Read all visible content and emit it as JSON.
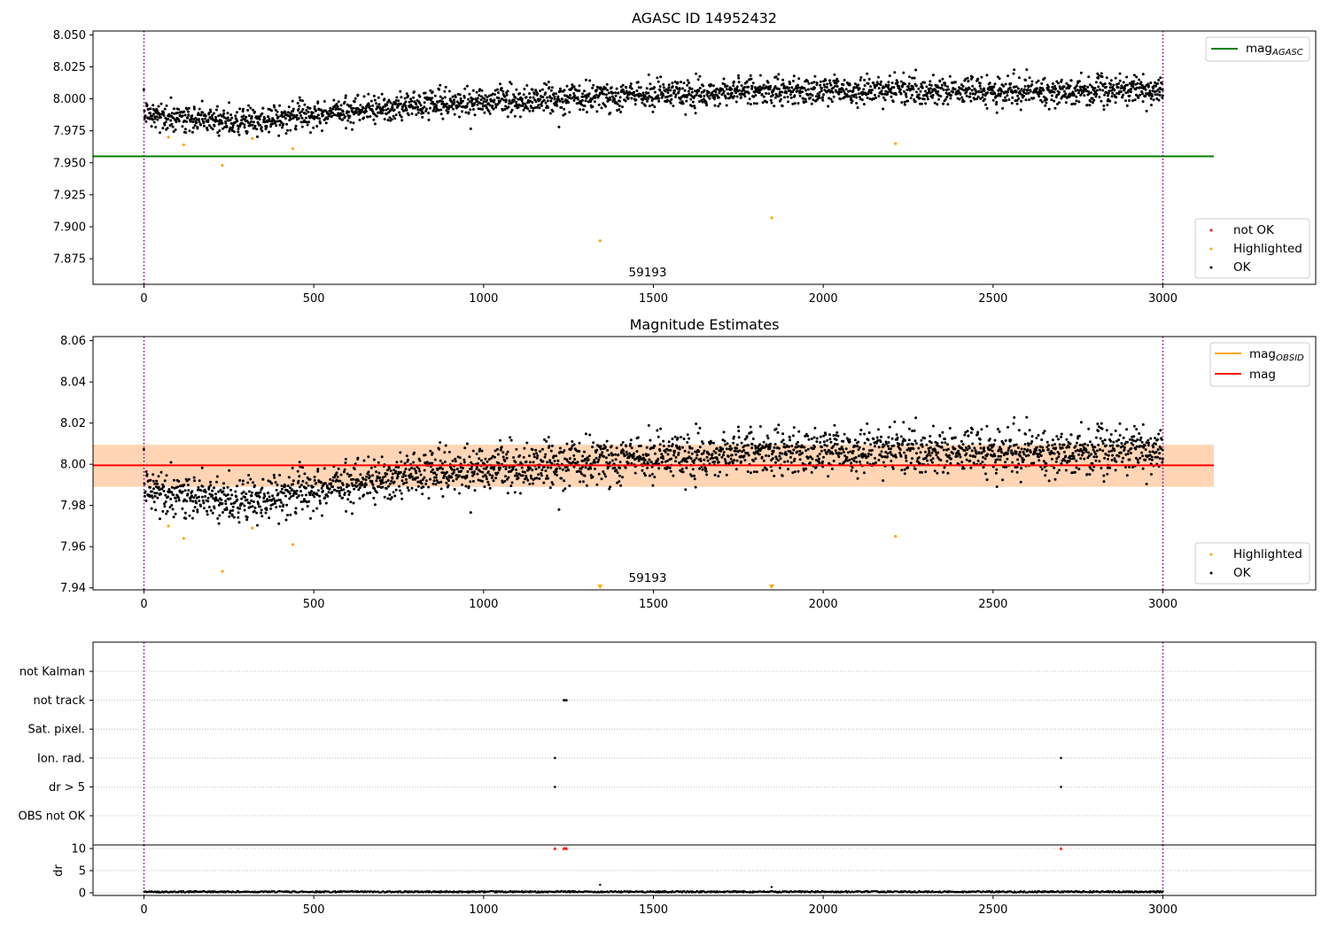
{
  "chart_data": [
    {
      "type": "scatter",
      "title": "AGASC ID 14952432",
      "annotation": "59193",
      "xlim": [
        -150,
        3450
      ],
      "ylim": [
        7.855,
        8.053
      ],
      "x_ticks": [
        0,
        500,
        1000,
        1500,
        2000,
        2500,
        3000
      ],
      "y_ticks": [
        7.875,
        7.9,
        7.925,
        7.95,
        7.975,
        8.0,
        8.025,
        8.05
      ],
      "y_tick_labels": [
        "7.875",
        "7.900",
        "7.925",
        "7.950",
        "7.975",
        "8.000",
        "8.025",
        "8.050"
      ],
      "vlines": [
        0,
        3000
      ],
      "hline": {
        "label": "mag",
        "label_sub": "AGASC",
        "y": 7.955,
        "x_range": [
          -150,
          3150
        ],
        "color": "#008000"
      },
      "ok_series": {
        "name": "OK",
        "color": "#000000",
        "trend": [
          [
            0,
            7.987
          ],
          [
            300,
            7.982
          ],
          [
            600,
            7.99
          ],
          [
            900,
            7.997
          ],
          [
            1200,
            8.0
          ],
          [
            1500,
            8.004
          ],
          [
            1800,
            8.006
          ],
          [
            2100,
            8.006
          ],
          [
            2400,
            8.006
          ],
          [
            2700,
            8.006
          ],
          [
            3000,
            8.007
          ]
        ],
        "scatter_sd": 0.0055,
        "count": 2600,
        "x_range": [
          0,
          3000
        ]
      },
      "outliers": [
        {
          "x": 1222,
          "y": 7.978
        }
      ],
      "highlighted": {
        "name": "Highlighted",
        "color": "#ffa500",
        "points": [
          [
            72,
            7.97
          ],
          [
            117,
            7.964
          ],
          [
            231,
            7.948
          ],
          [
            319,
            7.969
          ],
          [
            438,
            7.961
          ],
          [
            1343,
            7.889
          ],
          [
            1848,
            7.907
          ],
          [
            2213,
            7.965
          ]
        ]
      },
      "legend_main": {
        "placement": "upper right",
        "entries": [
          {
            "label": "mag",
            "label_sub": "AGASC",
            "color": "#008000",
            "marker": "line"
          }
        ]
      },
      "legend_points": {
        "placement": "lower right",
        "entries": [
          {
            "label": "not OK",
            "color": "#ff0000",
            "marker": "dot"
          },
          {
            "label": "Highlighted",
            "color": "#ffa500",
            "marker": "dot"
          },
          {
            "label": "OK",
            "color": "#000000",
            "marker": "dot"
          }
        ]
      }
    },
    {
      "type": "scatter",
      "title": "Magnitude Estimates",
      "annotation": "59193",
      "xlim": [
        -150,
        3450
      ],
      "ylim": [
        7.939,
        8.062
      ],
      "x_ticks": [
        0,
        500,
        1000,
        1500,
        2000,
        2500,
        3000
      ],
      "y_ticks": [
        7.94,
        7.96,
        7.98,
        8.0,
        8.02,
        8.04,
        8.06
      ],
      "y_tick_labels": [
        "7.94",
        "7.96",
        "7.98",
        "8.00",
        "8.02",
        "8.04",
        "8.06"
      ],
      "vlines": [
        0,
        3000
      ],
      "bands": [
        {
          "y_range": [
            7.989,
            8.0095
          ],
          "x_range": [
            -150,
            3150
          ],
          "color": "#ffc0cb",
          "opacity": 0.45
        },
        {
          "y_range": [
            7.989,
            8.0095
          ],
          "x_range": [
            -150,
            3150
          ],
          "color": "#ffa500",
          "opacity": 0.22
        }
      ],
      "hline": {
        "label": "mag",
        "y": 7.9995,
        "x_range": [
          -150,
          3150
        ],
        "color": "#ff0000"
      },
      "obsid_line": {
        "label": "mag",
        "label_sub": "OBSID",
        "color": "#ffa500"
      },
      "ok_series": {
        "name": "OK",
        "color": "#000000",
        "trend": [
          [
            0,
            7.987
          ],
          [
            300,
            7.982
          ],
          [
            600,
            7.99
          ],
          [
            900,
            7.997
          ],
          [
            1200,
            8.0
          ],
          [
            1500,
            8.004
          ],
          [
            1800,
            8.006
          ],
          [
            2100,
            8.006
          ],
          [
            2400,
            8.006
          ],
          [
            2700,
            8.006
          ],
          [
            3000,
            8.007
          ]
        ],
        "scatter_sd": 0.0055,
        "count": 2600,
        "x_range": [
          0,
          3000
        ]
      },
      "outliers": [
        {
          "x": 1222,
          "y": 7.978
        }
      ],
      "highlighted": {
        "name": "Highlighted",
        "color": "#ffa500",
        "points": [
          [
            72,
            7.97
          ],
          [
            117,
            7.964
          ],
          [
            231,
            7.948
          ],
          [
            319,
            7.969
          ],
          [
            438,
            7.961
          ],
          [
            2213,
            7.965
          ]
        ],
        "below_axis": [
          1343,
          1848
        ]
      },
      "legend_main": {
        "placement": "upper right",
        "entries": [
          {
            "label": "mag",
            "label_sub": "OBSID",
            "color": "#ffa500",
            "marker": "line"
          },
          {
            "label": "mag",
            "color": "#ff0000",
            "marker": "line"
          }
        ]
      },
      "legend_points": {
        "placement": "lower right",
        "entries": [
          {
            "label": "Highlighted",
            "color": "#ffa500",
            "marker": "dot"
          },
          {
            "label": "OK",
            "color": "#000000",
            "marker": "dot"
          }
        ]
      }
    },
    {
      "type": "scatter",
      "xlim": [
        -150,
        3450
      ],
      "categories": [
        "not Kalman",
        "not track",
        "Sat. pixel.",
        "Ion. rad.",
        "dr > 5",
        "OBS not OK"
      ],
      "vlines": [
        0,
        3000
      ],
      "flags": [
        {
          "category": "not track",
          "x": [
            1236,
            1240,
            1244
          ]
        },
        {
          "category": "Ion. rad.",
          "x": [
            1210,
            2700
          ]
        },
        {
          "category": "dr > 5",
          "x": [
            1210,
            2700
          ]
        }
      ]
    },
    {
      "type": "scatter",
      "ylabel": "dr",
      "xlim": [
        -150,
        3450
      ],
      "ylim": [
        -0.6,
        10.8
      ],
      "x_ticks": [
        0,
        500,
        1000,
        1500,
        2000,
        2500,
        3000
      ],
      "y_ticks": [
        0,
        5,
        10
      ],
      "y_tick_labels": [
        "0",
        "5",
        "10"
      ],
      "vlines": [
        0,
        3000
      ],
      "baseline": {
        "y_range": [
          0.05,
          0.4
        ],
        "count": 1500,
        "x_range": [
          0,
          3000
        ]
      },
      "spikes": [
        {
          "x": 1343,
          "y": 1.8
        },
        {
          "x": 1848,
          "y": 1.3
        }
      ],
      "clipped_markers": {
        "color": "#ff0000",
        "y": 10,
        "x": [
          1210,
          1236,
          1240,
          1244,
          2700
        ]
      }
    }
  ]
}
